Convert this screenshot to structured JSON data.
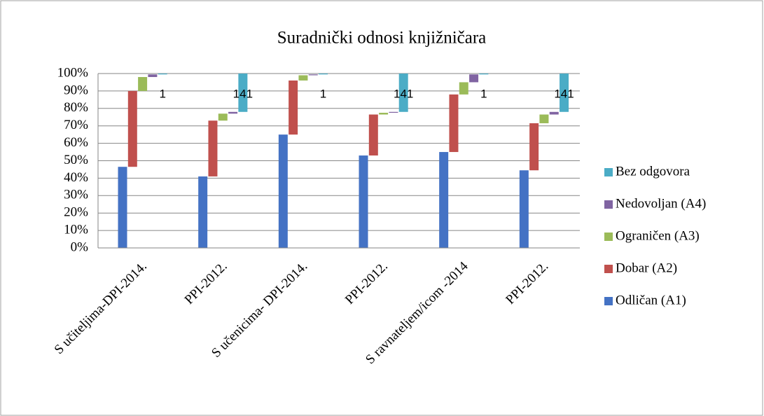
{
  "chart_data": {
    "type": "waterfall_stack",
    "title": "Suradnički odnosi knjižničara",
    "categories": [
      "S učiteljima-DPI-2014.",
      "PPI-2012.",
      "S učenicima- DPI-2014.",
      "PPI-2012.",
      "S ravnateljem/icom -2014",
      "PPI-2012."
    ],
    "series": [
      {
        "name": "Odličan (A1)",
        "color": "#4472c4",
        "values": [
          46.5,
          41,
          65,
          53,
          55,
          44.5
        ]
      },
      {
        "name": "Dobar (A2)",
        "color": "#c0504d",
        "values": [
          43.5,
          32,
          31,
          23.5,
          33,
          27
        ]
      },
      {
        "name": "Ograničen (A3)",
        "color": "#9bbb59",
        "values": [
          8,
          4,
          3,
          1,
          7,
          5
        ]
      },
      {
        "name": "Nedovoljan (A4)",
        "color": "#8064a2",
        "values": [
          1.5,
          1,
          0.5,
          0.5,
          4.5,
          1.5
        ]
      },
      {
        "name": "Bez odgovora",
        "color": "#4bacc6",
        "values": [
          0.5,
          22,
          0.5,
          22,
          0.5,
          22
        ]
      }
    ],
    "data_labels": [
      "1",
      "141",
      "1",
      "141",
      "1",
      "141"
    ],
    "ylim": [
      0,
      100
    ],
    "yticks": [
      {
        "value": 0,
        "label": "0%"
      },
      {
        "value": 10,
        "label": "10%"
      },
      {
        "value": 20,
        "label": "20%"
      },
      {
        "value": 30,
        "label": "30%"
      },
      {
        "value": 40,
        "label": "40%"
      },
      {
        "value": 50,
        "label": "50%"
      },
      {
        "value": 60,
        "label": "60%"
      },
      {
        "value": 70,
        "label": "70%"
      },
      {
        "value": 80,
        "label": "80%"
      },
      {
        "value": 90,
        "label": "90%"
      },
      {
        "value": 100,
        "label": "100%"
      }
    ],
    "grid": true,
    "legend": "right"
  }
}
